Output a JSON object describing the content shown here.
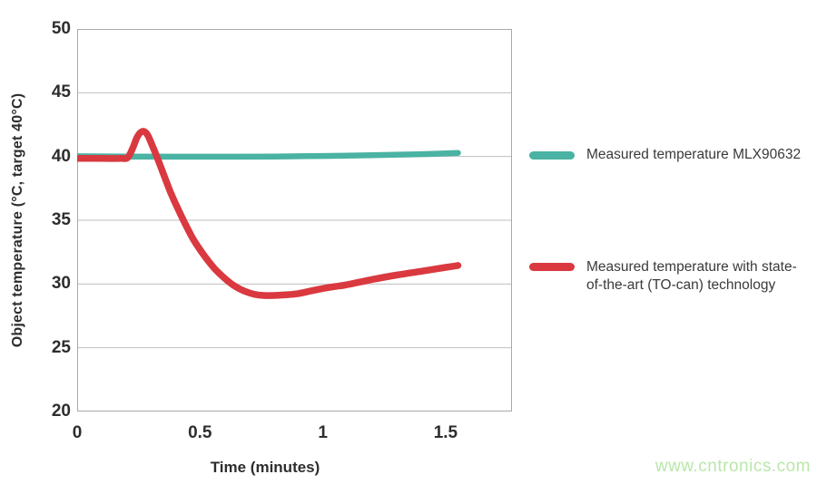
{
  "chart_data": {
    "type": "line",
    "title": "",
    "xlabel": "Time (minutes)",
    "ylabel": "Object temperature (°C, target 40°C)",
    "xlim": [
      0,
      1.77
    ],
    "ylim": [
      20,
      50
    ],
    "xticks": [
      0,
      0.5,
      1,
      1.5
    ],
    "yticks": [
      50,
      45,
      40,
      35,
      30,
      25,
      20
    ],
    "grid": "horizontal-only",
    "legend_position": "right-outside",
    "series": [
      {
        "name": "Measured temperature MLX90632",
        "color": "#4ab3a3",
        "stroke_width": 6.5,
        "points": [
          [
            0,
            40.02
          ],
          [
            0.2,
            40.0
          ],
          [
            0.5,
            39.98
          ],
          [
            0.8,
            40.0
          ],
          [
            1.0,
            40.04
          ],
          [
            1.2,
            40.1
          ],
          [
            1.4,
            40.18
          ],
          [
            1.55,
            40.28
          ]
        ]
      },
      {
        "name": "Measured temperature with state-of-the-art (TO-can) technology",
        "color": "#d9393f",
        "stroke_width": 7.5,
        "points": [
          [
            0,
            39.85
          ],
          [
            0.1,
            39.85
          ],
          [
            0.18,
            39.85
          ],
          [
            0.205,
            39.9
          ],
          [
            0.225,
            40.6
          ],
          [
            0.245,
            41.55
          ],
          [
            0.265,
            41.97
          ],
          [
            0.285,
            41.75
          ],
          [
            0.305,
            40.9
          ],
          [
            0.325,
            39.95
          ],
          [
            0.35,
            38.7
          ],
          [
            0.38,
            37.2
          ],
          [
            0.41,
            35.9
          ],
          [
            0.44,
            34.7
          ],
          [
            0.47,
            33.6
          ],
          [
            0.5,
            32.7
          ],
          [
            0.53,
            31.9
          ],
          [
            0.56,
            31.2
          ],
          [
            0.6,
            30.45
          ],
          [
            0.64,
            29.85
          ],
          [
            0.68,
            29.45
          ],
          [
            0.72,
            29.2
          ],
          [
            0.76,
            29.1
          ],
          [
            0.8,
            29.1
          ],
          [
            0.85,
            29.15
          ],
          [
            0.9,
            29.25
          ],
          [
            0.95,
            29.45
          ],
          [
            1.0,
            29.65
          ],
          [
            1.05,
            29.8
          ],
          [
            1.1,
            29.95
          ],
          [
            1.2,
            30.35
          ],
          [
            1.3,
            30.7
          ],
          [
            1.4,
            31.0
          ],
          [
            1.5,
            31.3
          ],
          [
            1.55,
            31.45
          ]
        ]
      }
    ]
  },
  "axes": {
    "x_tick_labels": [
      "0",
      "0.5",
      "1",
      "1.5"
    ],
    "y_tick_labels": [
      "50",
      "45",
      "40",
      "35",
      "30",
      "25",
      "20"
    ],
    "x_title": "Time (minutes)",
    "y_title": "Object temperature (°C, target 40°C)"
  },
  "legend": {
    "items": [
      {
        "label": "Measured temperature MLX90632",
        "lines": [
          "Measured temperature MLX90632"
        ],
        "color": "#4ab3a3"
      },
      {
        "label": "Measured temperature with state-of-the-art (TO-can) technology",
        "lines": [
          "Measured temperature with state-",
          "of-the-art (TO-can) technology"
        ],
        "color": "#d9393f"
      }
    ]
  },
  "watermark": {
    "text": "www.cntronics.com",
    "color": "#b9e7a9"
  },
  "colors": {
    "plot_border": "#a9a9a9",
    "gridline": "#bfbfbf",
    "tick_text": "#2d2d2d",
    "legend_text": "#3a3a3a",
    "background": "#ffffff"
  }
}
